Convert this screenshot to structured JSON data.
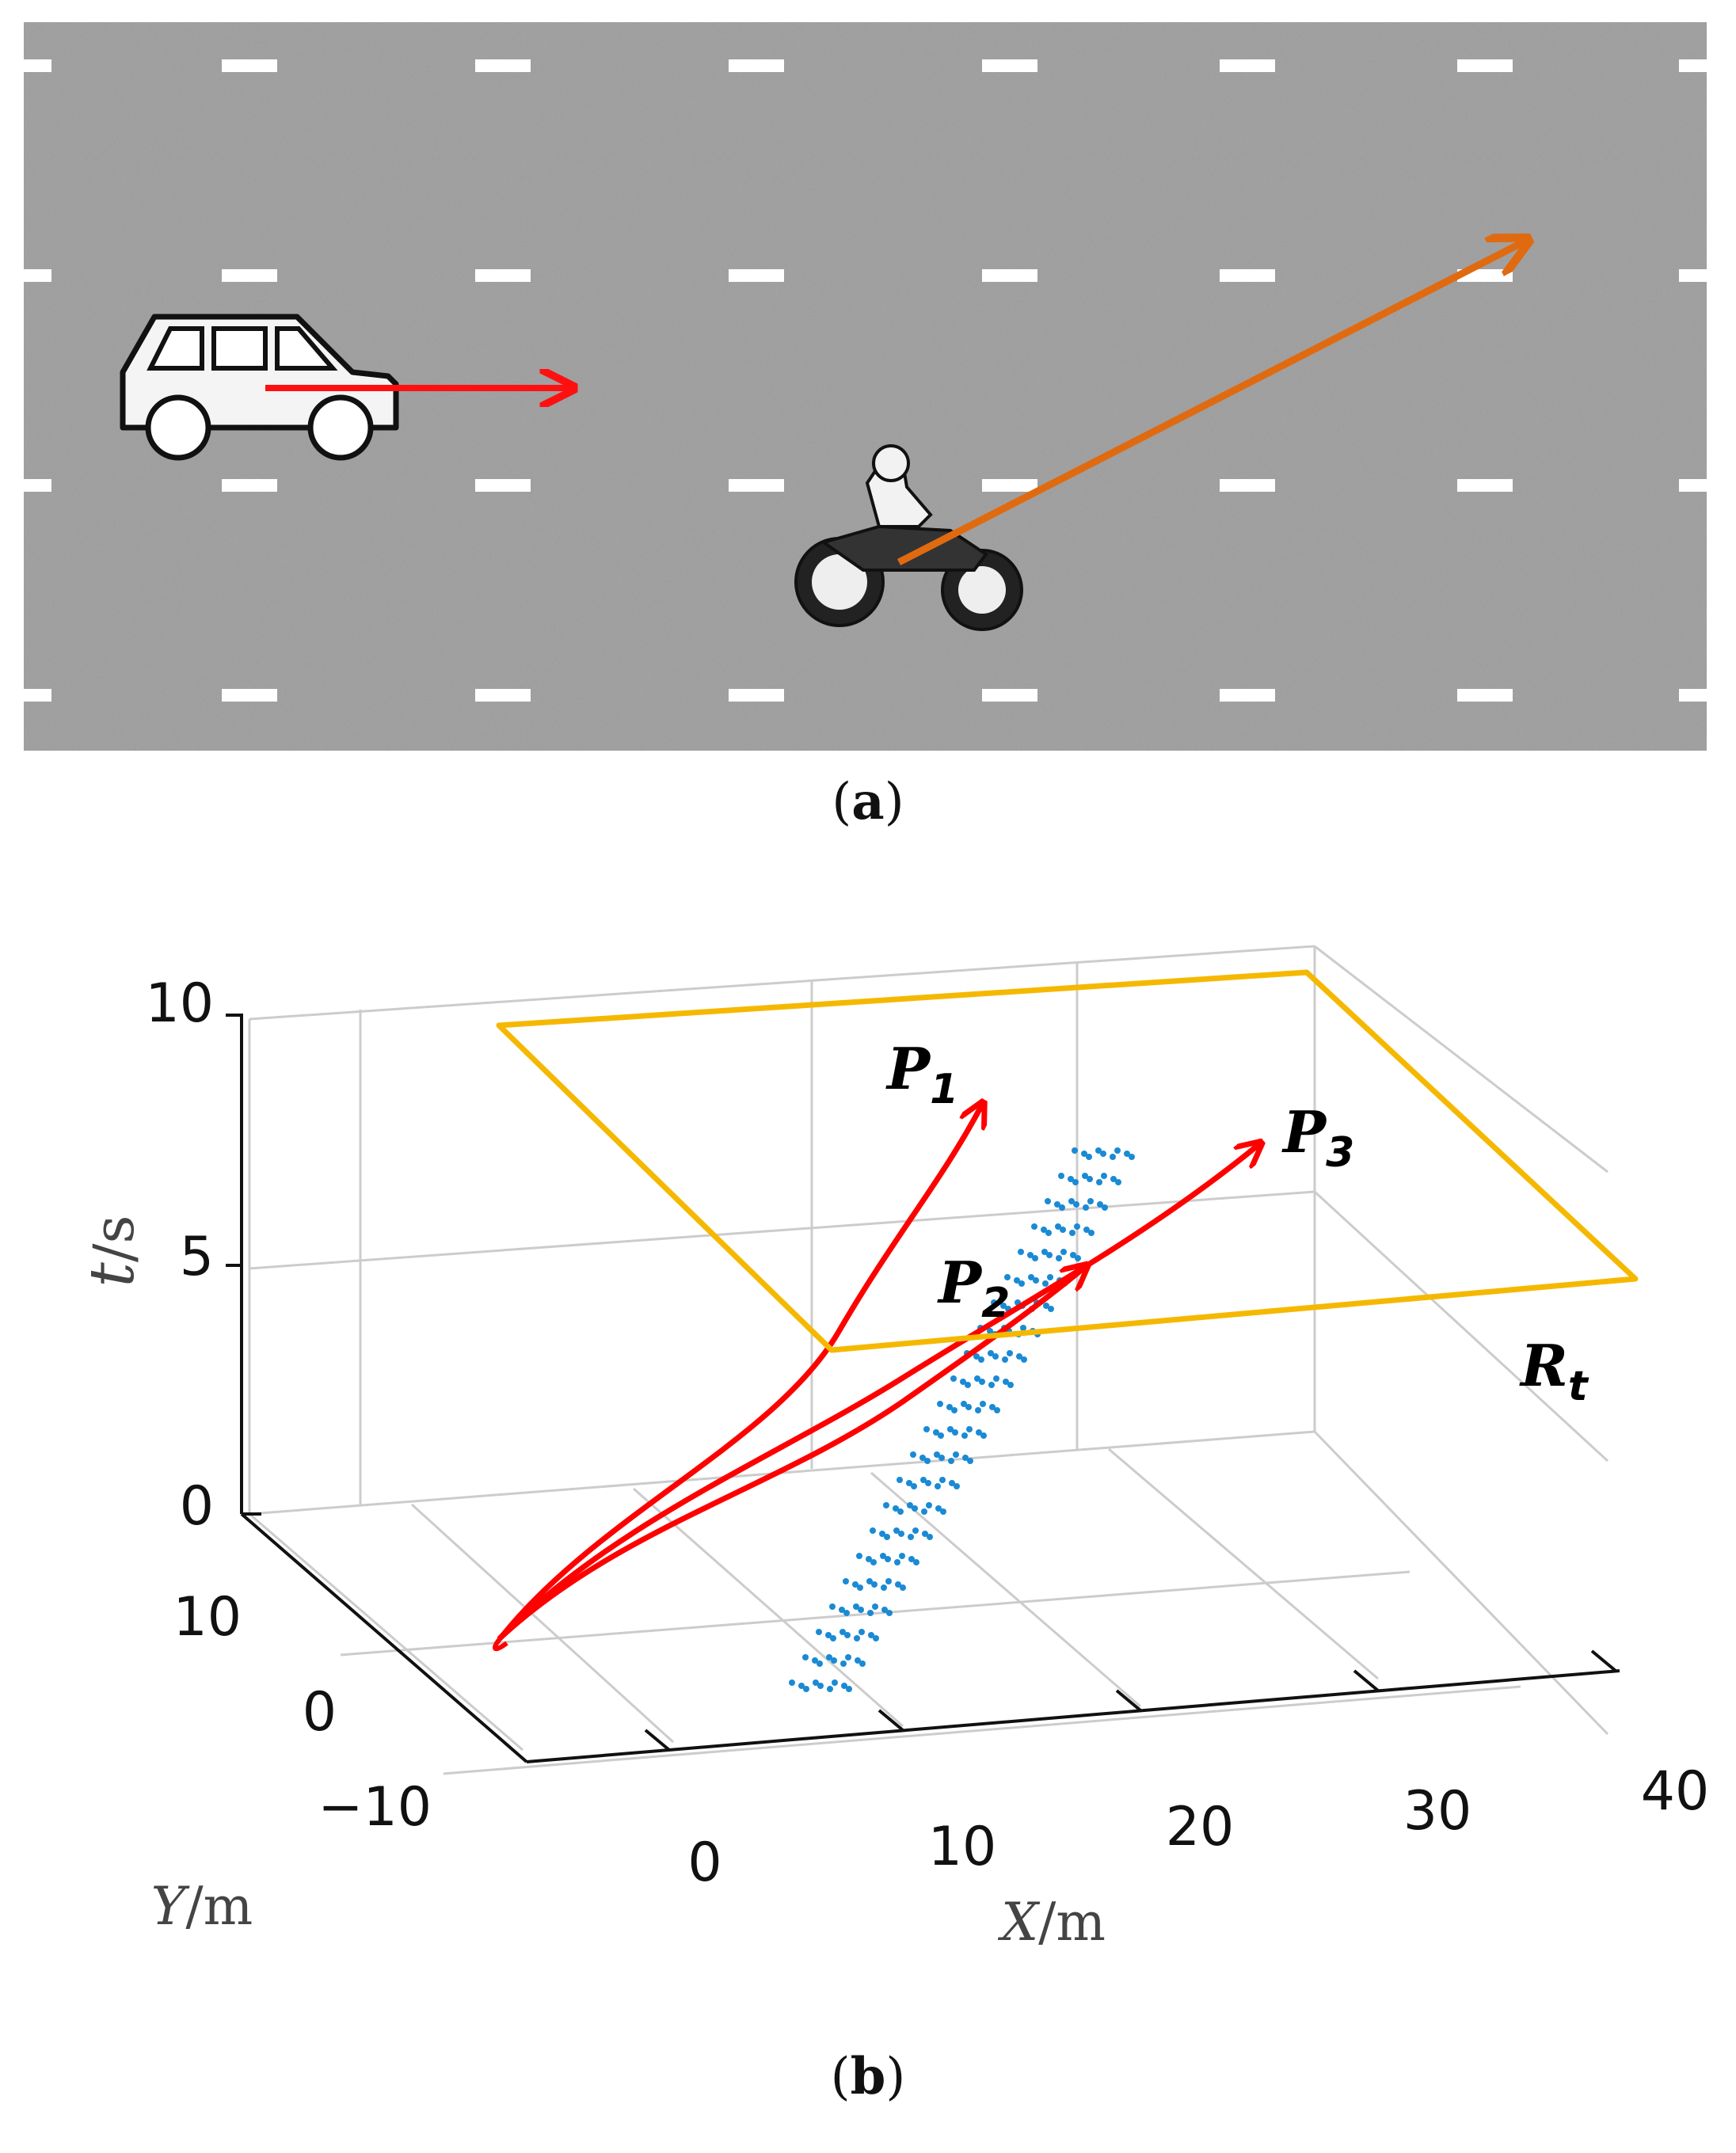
{
  "panel_a": {
    "caption_letter": "a",
    "road_color": "#9a9a9a",
    "lane_mark_color": "#ffffff",
    "car_arrow_color": "#ff1010",
    "motorcycle_arrow_color": "#e06a10",
    "icons": [
      "car-icon",
      "motorcycle-icon"
    ]
  },
  "panel_b": {
    "caption_letter": "b",
    "axes": {
      "t_label_var": "t",
      "t_label_unit": "/s",
      "x_label_var": "X",
      "x_label_unit": "/m",
      "y_label_var": "Y",
      "y_label_unit": "/m",
      "t_ticks": [
        "10",
        "5",
        "0"
      ],
      "x_ticks": [
        "0",
        "10",
        "20",
        "30",
        "40"
      ],
      "y_ticks": [
        "10",
        "0",
        "−10"
      ]
    },
    "labels": {
      "p1_main": "P",
      "p1_sub": "1",
      "p2_main": "P",
      "p2_sub": "2",
      "p3_main": "P",
      "p3_sub": "3",
      "rt_main": "R",
      "rt_sub": "t"
    },
    "colors": {
      "trajectory": "#ff0000",
      "plane": "#f5b800",
      "points": "#1a8ad4",
      "grid": "#cccccc"
    }
  }
}
